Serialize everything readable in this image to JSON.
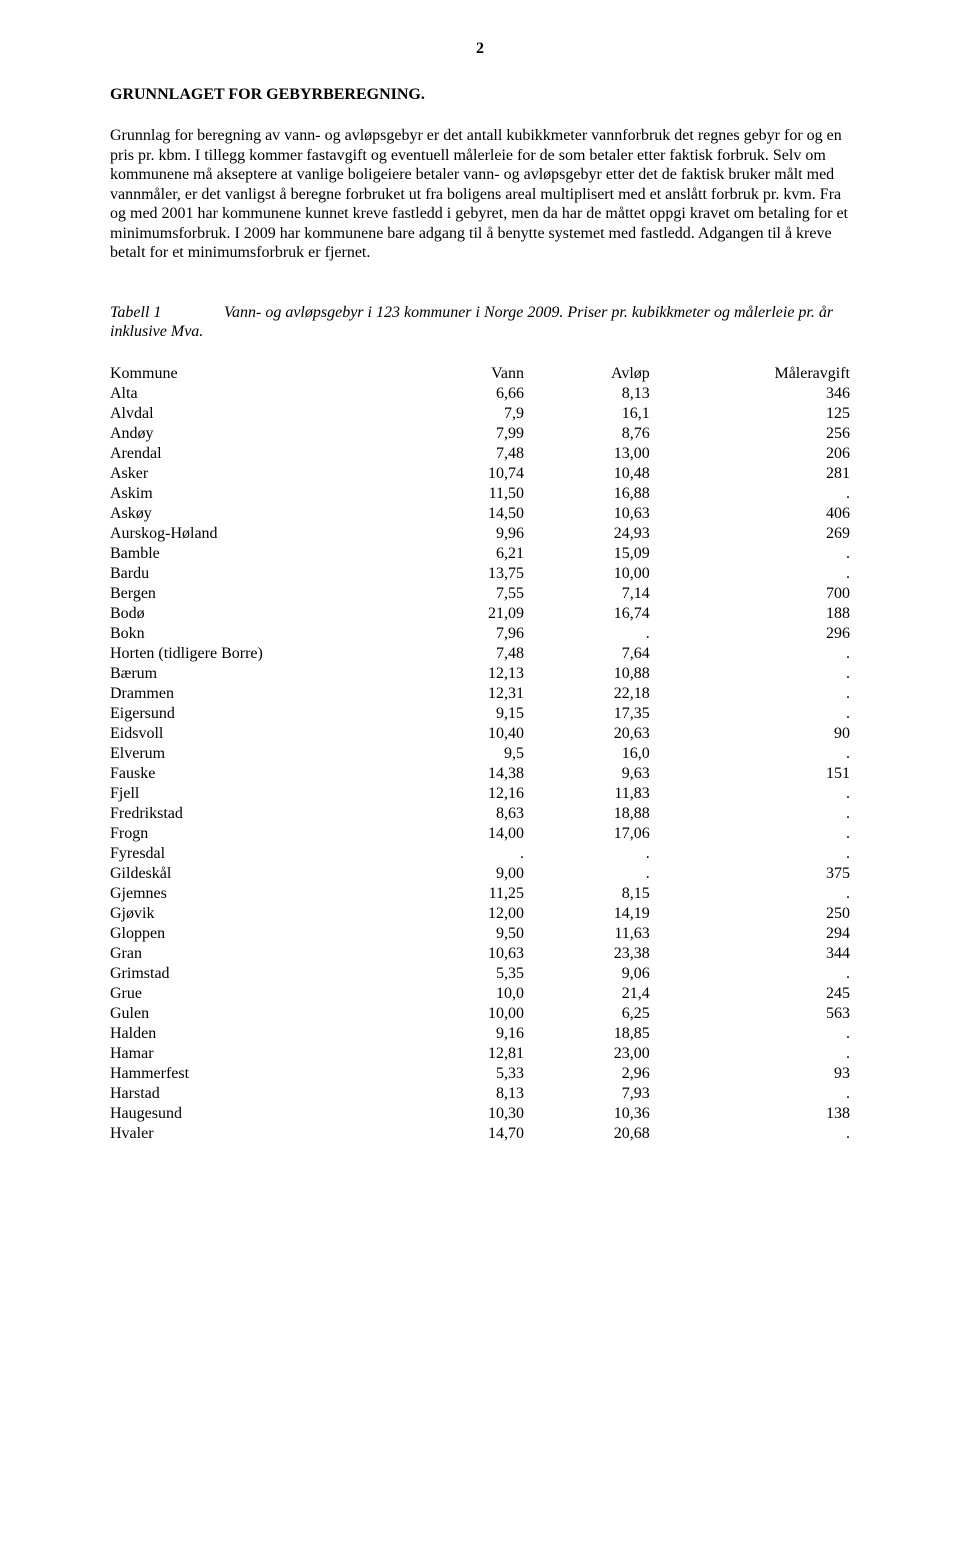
{
  "pageNumber": "2",
  "heading": "GRUNNLAGET FOR GEBYRBEREGNING.",
  "bodyText": "Grunnlag for beregning av vann- og avløpsgebyr er det antall kubikkmeter vannforbruk det regnes gebyr for og en pris pr. kbm. I tillegg kommer fastavgift og eventuell målerleie for de som betaler etter faktisk forbruk. Selv om kommunene må akseptere at vanlige boligeiere betaler vann- og avløpsgebyr etter det de faktisk bruker målt med vannmåler, er det vanligst å beregne forbruket ut fra boligens areal multiplisert med et anslått forbruk pr. kvm. Fra og med 2001 har kommunene kunnet kreve fastledd i gebyret, men da har de måttet oppgi kravet om betaling for et minimumsforbruk. I 2009 har kommunene bare adgang til å benytte systemet med fastledd. Adgangen til å kreve betalt for et minimumsforbruk er fjernet.",
  "caption": {
    "label": "Tabell 1",
    "text": "Vann- og avløpsgebyr i 123 kommuner i Norge 2009. Priser pr. kubikkmeter og målerleie pr. år inklusive Mva."
  },
  "table": {
    "headers": {
      "kommune": "Kommune",
      "vann": "Vann",
      "avlop": "Avløp",
      "avgift": "Måleravgift"
    },
    "rows": [
      {
        "kommune": "Alta",
        "vann": "6,66",
        "avlop": "8,13",
        "avgift": "346"
      },
      {
        "kommune": "Alvdal",
        "vann": "7,9",
        "avlop": "16,1",
        "avgift": "125"
      },
      {
        "kommune": "Andøy",
        "vann": "7,99",
        "avlop": "8,76",
        "avgift": "256"
      },
      {
        "kommune": "Arendal",
        "vann": "7,48",
        "avlop": "13,00",
        "avgift": "206"
      },
      {
        "kommune": "Asker",
        "vann": "10,74",
        "avlop": "10,48",
        "avgift": "281"
      },
      {
        "kommune": "Askim",
        "vann": "11,50",
        "avlop": "16,88",
        "avgift": "."
      },
      {
        "kommune": "Askøy",
        "vann": "14,50",
        "avlop": "10,63",
        "avgift": "406"
      },
      {
        "kommune": "Aurskog-Høland",
        "vann": "9,96",
        "avlop": "24,93",
        "avgift": "269"
      },
      {
        "kommune": "Bamble",
        "vann": "6,21",
        "avlop": "15,09",
        "avgift": "."
      },
      {
        "kommune": "Bardu",
        "vann": "13,75",
        "avlop": "10,00",
        "avgift": "."
      },
      {
        "kommune": "Bergen",
        "vann": "7,55",
        "avlop": "7,14",
        "avgift": "700"
      },
      {
        "kommune": "Bodø",
        "vann": "21,09",
        "avlop": "16,74",
        "avgift": "188"
      },
      {
        "kommune": "Bokn",
        "vann": "7,96",
        "avlop": ".",
        "avgift": "296"
      },
      {
        "kommune": "Horten (tidligere Borre)",
        "vann": "7,48",
        "avlop": "7,64",
        "avgift": "."
      },
      {
        "kommune": "Bærum",
        "vann": "12,13",
        "avlop": "10,88",
        "avgift": "."
      },
      {
        "kommune": "Drammen",
        "vann": "12,31",
        "avlop": "22,18",
        "avgift": "."
      },
      {
        "kommune": "Eigersund",
        "vann": "9,15",
        "avlop": "17,35",
        "avgift": "."
      },
      {
        "kommune": "Eidsvoll",
        "vann": "10,40",
        "avlop": "20,63",
        "avgift": "90"
      },
      {
        "kommune": "Elverum",
        "vann": "9,5",
        "avlop": "16,0",
        "avgift": "."
      },
      {
        "kommune": "Fauske",
        "vann": "14,38",
        "avlop": "9,63",
        "avgift": "151"
      },
      {
        "kommune": "Fjell",
        "vann": "12,16",
        "avlop": "11,83",
        "avgift": "."
      },
      {
        "kommune": "Fredrikstad",
        "vann": "8,63",
        "avlop": "18,88",
        "avgift": "."
      },
      {
        "kommune": "Frogn",
        "vann": "14,00",
        "avlop": "17,06",
        "avgift": "."
      },
      {
        "kommune": "Fyresdal",
        "vann": ".",
        "avlop": ".",
        "avgift": "."
      },
      {
        "kommune": "Gildeskål",
        "vann": "9,00",
        "avlop": ".",
        "avgift": "375"
      },
      {
        "kommune": "Gjemnes",
        "vann": "11,25",
        "avlop": "8,15",
        "avgift": "."
      },
      {
        "kommune": "Gjøvik",
        "vann": "12,00",
        "avlop": "14,19",
        "avgift": "250"
      },
      {
        "kommune": "Gloppen",
        "vann": "9,50",
        "avlop": "11,63",
        "avgift": "294"
      },
      {
        "kommune": "Gran",
        "vann": "10,63",
        "avlop": "23,38",
        "avgift": "344"
      },
      {
        "kommune": "Grimstad",
        "vann": "5,35",
        "avlop": "9,06",
        "avgift": "."
      },
      {
        "kommune": "Grue",
        "vann": "10,0",
        "avlop": "21,4",
        "avgift": "245"
      },
      {
        "kommune": "Gulen",
        "vann": "10,00",
        "avlop": "6,25",
        "avgift": "563"
      },
      {
        "kommune": "Halden",
        "vann": "9,16",
        "avlop": "18,85",
        "avgift": "."
      },
      {
        "kommune": "Hamar",
        "vann": "12,81",
        "avlop": "23,00",
        "avgift": "."
      },
      {
        "kommune": "Hammerfest",
        "vann": "5,33",
        "avlop": "2,96",
        "avgift": "93"
      },
      {
        "kommune": "Harstad",
        "vann": "8,13",
        "avlop": "7,93",
        "avgift": "."
      },
      {
        "kommune": "Haugesund",
        "vann": "10,30",
        "avlop": "10,36",
        "avgift": "138"
      },
      {
        "kommune": "Hvaler",
        "vann": "14,70",
        "avlop": "20,68",
        "avgift": "."
      }
    ]
  }
}
